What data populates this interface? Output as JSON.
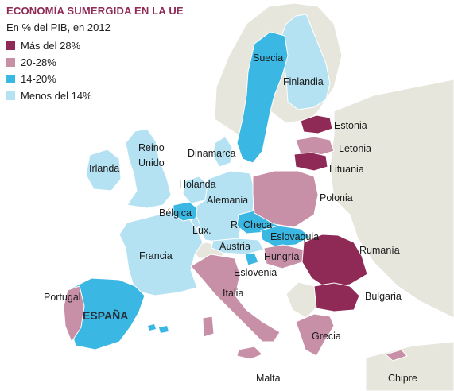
{
  "title": "ECONOMÍA SUMERGIDA EN LA UE",
  "subtitle": "En % del PIB, en 2012",
  "legend": [
    {
      "label": "Más del 28%",
      "color": "#8e2a55"
    },
    {
      "label": "20-28%",
      "color": "#c890a6"
    },
    {
      "label": "14-20%",
      "color": "#3ab7e3"
    },
    {
      "label": "Menos del 14%",
      "color": "#b4e2f3"
    }
  ],
  "colors": {
    "sea": "#ffffff",
    "non_eu": "#e7e6dc",
    "border": "#ffffff"
  },
  "countries": {
    "suecia": "Suecia",
    "finlandia": "Finlandia",
    "estonia": "Estonia",
    "letonia": "Letonia",
    "lituania": "Lituania",
    "dinamarca": "Dinamarca",
    "reino_unido_1": "Reino",
    "reino_unido_2": "Unido",
    "irlanda": "Irlanda",
    "holanda": "Holanda",
    "alemania": "Alemania",
    "polonia": "Polonia",
    "belgica": "Bélgica",
    "rcheca": "R. Checa",
    "lux": "Lux.",
    "eslovaquia": "Eslovaquia",
    "austria": "Austria",
    "rumania": "Rumanía",
    "francia": "Francia",
    "hungria": "Hungría",
    "eslovenia": "Eslovenia",
    "portugal": "Portugal",
    "italia": "Italia",
    "bulgaria": "Bulgaria",
    "espana": "ESPAÑA",
    "grecia": "Grecia",
    "malta": "Malta",
    "chipre": "Chipre"
  }
}
